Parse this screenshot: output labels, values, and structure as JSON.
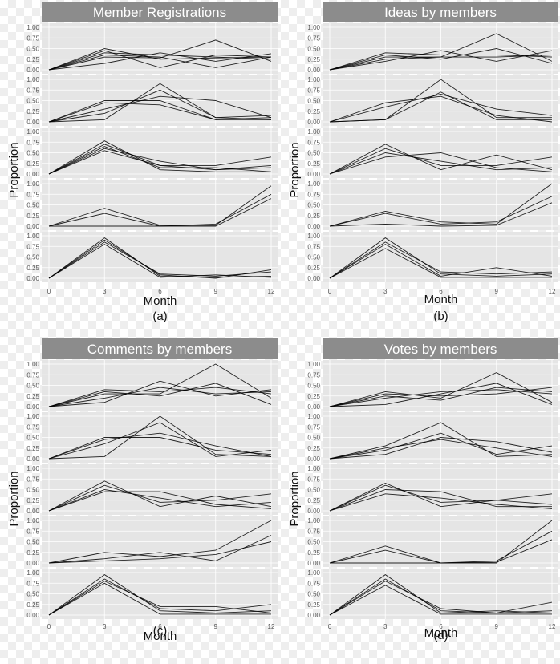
{
  "chart_data": [
    {
      "type": "line",
      "panel": "(a)",
      "title": "Member Registrations",
      "xlabel": "Month",
      "ylabel": "Proportion",
      "x": [
        0,
        3,
        6,
        9,
        12
      ],
      "x_ticks": [
        "0",
        "3",
        "6",
        "9",
        "12"
      ],
      "y_ticks": [
        "0.00",
        "0.25",
        "0.50",
        "0.75",
        "1.00"
      ],
      "ylim": [
        0,
        1
      ],
      "facets": [
        {
          "series": [
            {
              "values": [
                0,
                0.5,
                0.25,
                0.28,
                0.3
              ]
            },
            {
              "values": [
                0,
                0.4,
                0.35,
                0.3,
                0.25
              ]
            },
            {
              "values": [
                0,
                0.3,
                0.28,
                0.7,
                0.2
              ]
            },
            {
              "values": [
                0,
                0.45,
                0.05,
                0.35,
                0.3
              ]
            },
            {
              "values": [
                0,
                0.15,
                0.4,
                0.2,
                0.38
              ]
            },
            {
              "values": [
                0,
                0.35,
                0.3,
                0.05,
                0.3
              ]
            }
          ]
        },
        {
          "series": [
            {
              "values": [
                0,
                0.5,
                0.5,
                0.05,
                0.1
              ]
            },
            {
              "values": [
                0,
                0.05,
                0.9,
                0.1,
                0.05
              ]
            },
            {
              "values": [
                0,
                0.3,
                0.6,
                0.5,
                0.1
              ]
            },
            {
              "values": [
                0,
                0.45,
                0.4,
                0.05,
                0.05
              ]
            },
            {
              "values": [
                0,
                0.2,
                0.75,
                0.1,
                0.15
              ]
            }
          ]
        },
        {
          "series": [
            {
              "values": [
                0,
                0.78,
                0.1,
                0.05,
                0.05
              ]
            },
            {
              "values": [
                0,
                0.6,
                0.3,
                0.1,
                0.15
              ]
            },
            {
              "values": [
                0,
                0.7,
                0.2,
                0.2,
                0.4
              ]
            },
            {
              "values": [
                0,
                0.55,
                0.2,
                0.1,
                0.2
              ]
            },
            {
              "values": [
                0,
                0.65,
                0.15,
                0.15,
                0.05
              ]
            }
          ]
        },
        {
          "series": [
            {
              "values": [
                0,
                0.42,
                0.02,
                0.02,
                0.95
              ]
            },
            {
              "values": [
                0,
                0.3,
                0.0,
                0.05,
                0.75
              ]
            },
            {
              "values": [
                0,
                0.0,
                0.0,
                0.0,
                0.65
              ]
            }
          ]
        },
        {
          "series": [
            {
              "values": [
                0,
                0.95,
                0.05,
                0.02,
                0.05
              ]
            },
            {
              "values": [
                0,
                0.85,
                0.1,
                0.05,
                0.15
              ]
            },
            {
              "values": [
                0,
                0.8,
                0.02,
                0.08,
                0.02
              ]
            },
            {
              "values": [
                0,
                0.9,
                0.08,
                0.0,
                0.2
              ]
            }
          ]
        }
      ]
    },
    {
      "type": "line",
      "panel": "(b)",
      "title": "Ideas by members",
      "xlabel": "Month",
      "ylabel": "Proportion",
      "x": [
        0,
        3,
        6,
        9,
        12
      ],
      "x_ticks": [
        "0",
        "3",
        "6",
        "9",
        "12"
      ],
      "y_ticks": [
        "0.00",
        "0.25",
        "0.50",
        "0.75",
        "1.00"
      ],
      "ylim": [
        0,
        1
      ],
      "facets": [
        {
          "series": [
            {
              "values": [
                0,
                0.3,
                0.3,
                0.85,
                0.2
              ]
            },
            {
              "values": [
                0,
                0.4,
                0.35,
                0.35,
                0.3
              ]
            },
            {
              "values": [
                0,
                0.2,
                0.45,
                0.2,
                0.45
              ]
            },
            {
              "values": [
                0,
                0.35,
                0.25,
                0.5,
                0.15
              ]
            },
            {
              "values": [
                0,
                0.25,
                0.3,
                0.3,
                0.35
              ]
            }
          ]
        },
        {
          "series": [
            {
              "values": [
                0,
                0.05,
                1.0,
                0.1,
                0.1
              ]
            },
            {
              "values": [
                0,
                0.35,
                0.65,
                0.3,
                0.15
              ]
            },
            {
              "values": [
                0,
                0.05,
                0.7,
                0.05,
                0.05
              ]
            },
            {
              "values": [
                0,
                0.45,
                0.6,
                0.15,
                0.0
              ]
            }
          ]
        },
        {
          "series": [
            {
              "values": [
                0,
                0.7,
                0.1,
                0.45,
                0.1
              ]
            },
            {
              "values": [
                0,
                0.5,
                0.3,
                0.1,
                0.15
              ]
            },
            {
              "values": [
                0,
                0.6,
                0.2,
                0.2,
                0.4
              ]
            },
            {
              "values": [
                0,
                0.4,
                0.5,
                0.15,
                0.05
              ]
            }
          ]
        },
        {
          "series": [
            {
              "values": [
                0,
                0.35,
                0.1,
                0.05,
                1.0
              ]
            },
            {
              "values": [
                0,
                0.3,
                0.05,
                0.1,
                0.7
              ]
            },
            {
              "values": [
                0,
                0.05,
                0.0,
                0.02,
                0.55
              ]
            }
          ]
        },
        {
          "series": [
            {
              "values": [
                0,
                0.95,
                0.1,
                0.05,
                0.1
              ]
            },
            {
              "values": [
                0,
                0.8,
                0.05,
                0.25,
                0.05
              ]
            },
            {
              "values": [
                0,
                0.85,
                0.15,
                0.1,
                0.15
              ]
            },
            {
              "values": [
                0,
                0.7,
                0.02,
                0.02,
                0.02
              ]
            }
          ]
        }
      ]
    },
    {
      "type": "line",
      "panel": "(c)",
      "title": "Comments by members",
      "xlabel": "Month",
      "ylabel": "Proportion",
      "x": [
        0,
        3,
        6,
        9,
        12
      ],
      "x_ticks": [
        "0",
        "3",
        "6",
        "9",
        "12"
      ],
      "y_ticks": [
        "0.00",
        "0.25",
        "0.50",
        "0.75",
        "1.00"
      ],
      "ylim": [
        0,
        1
      ],
      "facets": [
        {
          "series": [
            {
              "values": [
                0,
                0.3,
                0.3,
                1.0,
                0.2
              ]
            },
            {
              "values": [
                0,
                0.4,
                0.35,
                0.45,
                0.3
              ]
            },
            {
              "values": [
                0,
                0.2,
                0.45,
                0.3,
                0.35
              ]
            },
            {
              "values": [
                0,
                0.35,
                0.25,
                0.55,
                0.05
              ]
            },
            {
              "values": [
                0,
                0.1,
                0.6,
                0.25,
                0.4
              ]
            }
          ]
        },
        {
          "series": [
            {
              "values": [
                0,
                0.05,
                1.0,
                0.1,
                0.05
              ]
            },
            {
              "values": [
                0,
                0.5,
                0.5,
                0.2,
                0.1
              ]
            },
            {
              "values": [
                0,
                0.35,
                0.85,
                0.05,
                0.2
              ]
            },
            {
              "values": [
                0,
                0.45,
                0.6,
                0.3,
                0.05
              ]
            }
          ]
        },
        {
          "series": [
            {
              "values": [
                0,
                0.7,
                0.1,
                0.35,
                0.1
              ]
            },
            {
              "values": [
                0,
                0.5,
                0.3,
                0.1,
                0.2
              ]
            },
            {
              "values": [
                0,
                0.6,
                0.2,
                0.25,
                0.4
              ]
            },
            {
              "values": [
                0,
                0.45,
                0.45,
                0.15,
                0.05
              ]
            }
          ]
        },
        {
          "series": [
            {
              "values": [
                0,
                0.25,
                0.15,
                0.3,
                1.0
              ]
            },
            {
              "values": [
                0,
                0.1,
                0.25,
                0.05,
                0.65
              ]
            },
            {
              "values": [
                0,
                0.05,
                0.1,
                0.2,
                0.5
              ]
            }
          ]
        },
        {
          "series": [
            {
              "values": [
                0,
                0.95,
                0.1,
                0.05,
                0.1
              ]
            },
            {
              "values": [
                0,
                0.8,
                0.2,
                0.2,
                0.05
              ]
            },
            {
              "values": [
                0,
                0.85,
                0.15,
                0.1,
                0.25
              ]
            },
            {
              "values": [
                0,
                0.75,
                0.02,
                0.02,
                0.02
              ]
            }
          ]
        }
      ]
    },
    {
      "type": "line",
      "panel": "(d)",
      "title": "Votes by members",
      "xlabel": "Month",
      "ylabel": "Proportion",
      "x": [
        0,
        3,
        6,
        9,
        12
      ],
      "x_ticks": [
        "0",
        "3",
        "6",
        "9",
        "12"
      ],
      "y_ticks": [
        "0.00",
        "0.25",
        "0.50",
        "0.75",
        "1.00"
      ],
      "ylim": [
        0,
        1
      ],
      "facets": [
        {
          "series": [
            {
              "values": [
                0,
                0.35,
                0.2,
                0.8,
                0.1
              ]
            },
            {
              "values": [
                0,
                0.2,
                0.35,
                0.4,
                0.3
              ]
            },
            {
              "values": [
                0,
                0.3,
                0.25,
                0.3,
                0.45
              ]
            },
            {
              "values": [
                0,
                0.05,
                0.3,
                0.55,
                0.05
              ]
            },
            {
              "values": [
                0,
                0.25,
                0.15,
                0.45,
                0.35
              ]
            }
          ]
        },
        {
          "series": [
            {
              "values": [
                0,
                0.3,
                0.85,
                0.05,
                0.1
              ]
            },
            {
              "values": [
                0,
                0.1,
                0.5,
                0.4,
                0.15
              ]
            },
            {
              "values": [
                0,
                0.2,
                0.6,
                0.1,
                0.3
              ]
            },
            {
              "values": [
                0,
                0.25,
                0.45,
                0.25,
                0.05
              ]
            }
          ]
        },
        {
          "series": [
            {
              "values": [
                0,
                0.65,
                0.1,
                0.25,
                0.15
              ]
            },
            {
              "values": [
                0,
                0.5,
                0.45,
                0.1,
                0.1
              ]
            },
            {
              "values": [
                0,
                0.6,
                0.2,
                0.25,
                0.4
              ]
            },
            {
              "values": [
                0,
                0.4,
                0.3,
                0.15,
                0.05
              ]
            }
          ]
        },
        {
          "series": [
            {
              "values": [
                0,
                0.4,
                0.0,
                0.0,
                1.0
              ]
            },
            {
              "values": [
                0,
                0.3,
                0.0,
                0.05,
                0.75
              ]
            },
            {
              "values": [
                0,
                0.0,
                0.0,
                0.02,
                0.55
              ]
            }
          ]
        },
        {
          "series": [
            {
              "values": [
                0,
                0.95,
                0.05,
                0.1,
                0.05
              ]
            },
            {
              "values": [
                0,
                0.8,
                0.15,
                0.05,
                0.3
              ]
            },
            {
              "values": [
                0,
                0.85,
                0.1,
                0.05,
                0.1
              ]
            },
            {
              "values": [
                0,
                0.7,
                0.02,
                0.02,
                0.02
              ]
            }
          ]
        }
      ]
    }
  ],
  "colors": {
    "title_strip": "#8c8c8c",
    "facet_background": "#e5e5e5",
    "gridline": "#ffffff",
    "series_line": "#000000"
  }
}
